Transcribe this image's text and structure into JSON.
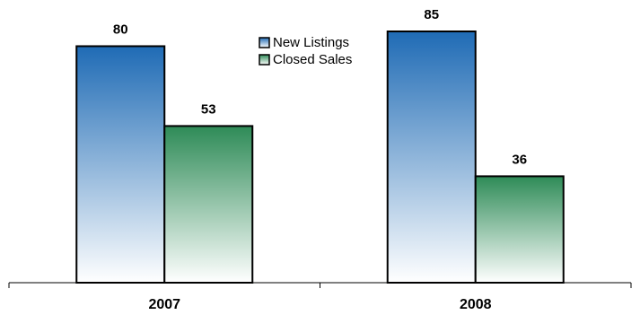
{
  "chart_data": {
    "type": "bar",
    "categories": [
      "2007",
      "2008"
    ],
    "series": [
      {
        "name": "New Listings",
        "values": [
          80,
          85
        ],
        "color_top": "#1f6bb5",
        "color_bottom": "#ffffff"
      },
      {
        "name": "Closed Sales",
        "values": [
          53,
          36
        ],
        "color_top": "#2e8b57",
        "color_bottom": "#ffffff"
      }
    ],
    "ylim": [
      0,
      85
    ],
    "grid": false,
    "legend_position": "top-center",
    "data_labels": true
  }
}
